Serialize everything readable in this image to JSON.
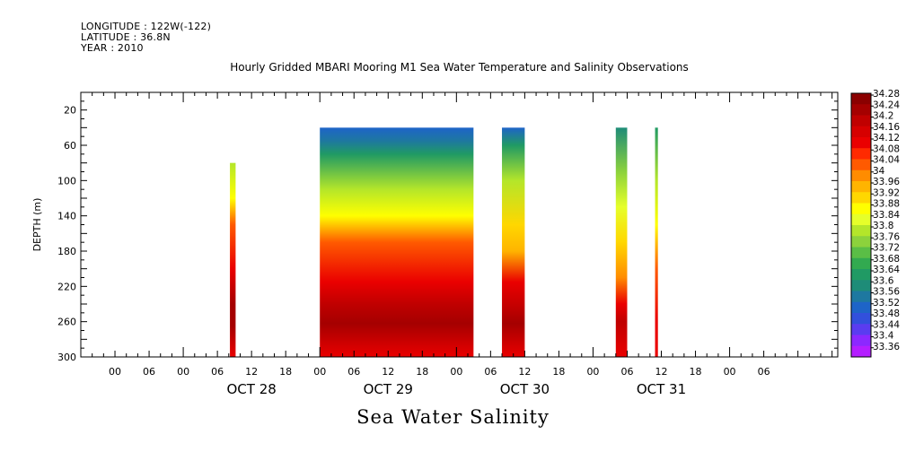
{
  "header": {
    "longitude": "LONGITUDE : 122W(-122)",
    "latitude": "LATITUDE : 36.8N",
    "year": "YEAR : 2010"
  },
  "chart_data": {
    "type": "heatmap",
    "title": "Hourly Gridded MBARI Mooring M1 Sea Water Temperature and Salinity Observations",
    "footer_title": "Sea Water Salinity",
    "ylabel": "DEPTH (m)",
    "xlabel": "",
    "x_unit": "hours since OCT 28 00:00 2010",
    "xlim": [
      -18,
      115
    ],
    "ylim": [
      300,
      0
    ],
    "y_ticks": [
      20,
      60,
      100,
      140,
      180,
      220,
      260,
      300
    ],
    "x_hour_ticks": [
      {
        "x": -12,
        "label": "00"
      },
      {
        "x": -6,
        "label": "06"
      },
      {
        "x": 0,
        "label": "00"
      },
      {
        "x": 6,
        "label": "06"
      },
      {
        "x": 12,
        "label": "12"
      },
      {
        "x": 18,
        "label": "18"
      },
      {
        "x": 24,
        "label": "00"
      },
      {
        "x": 30,
        "label": "06"
      },
      {
        "x": 36,
        "label": "12"
      },
      {
        "x": 42,
        "label": "18"
      },
      {
        "x": 48,
        "label": "00"
      },
      {
        "x": 54,
        "label": "06"
      },
      {
        "x": 60,
        "label": "12"
      },
      {
        "x": 66,
        "label": "18"
      },
      {
        "x": 72,
        "label": "00"
      },
      {
        "x": 78,
        "label": "06"
      },
      {
        "x": 84,
        "label": "12"
      },
      {
        "x": 90,
        "label": "18"
      },
      {
        "x": 96,
        "label": "00"
      },
      {
        "x": 102,
        "label": "06"
      }
    ],
    "x_day_labels": [
      {
        "x": 12,
        "label": "OCT 28"
      },
      {
        "x": 36,
        "label": "OCT 29"
      },
      {
        "x": 60,
        "label": "OCT 30"
      },
      {
        "x": 84,
        "label": "OCT 31"
      }
    ],
    "colorbar": {
      "labels": [
        "34.28",
        "34.24",
        "34.2",
        "34.16",
        "34.12",
        "34.08",
        "34.04",
        "34",
        "33.96",
        "33.92",
        "33.88",
        "33.84",
        "33.8",
        "33.76",
        "33.72",
        "33.68",
        "33.64",
        "33.6",
        "33.56",
        "33.52",
        "33.48",
        "33.44",
        "33.4",
        "33.36"
      ],
      "colors": [
        "#8b0000",
        "#a50000",
        "#c00000",
        "#d60000",
        "#ea0000",
        "#ff2a00",
        "#ff5a00",
        "#ff8c00",
        "#ffb400",
        "#ffd700",
        "#ffff00",
        "#e6ff2a",
        "#b4e62a",
        "#8cd23c",
        "#5abe46",
        "#32aa50",
        "#209a64",
        "#1e8c78",
        "#1e78a0",
        "#1e64c8",
        "#3250dc",
        "#5a3cf0",
        "#8c28ff",
        "#b41eff"
      ],
      "min": 33.36,
      "max": 34.28
    },
    "segments": [
      {
        "x0": 8.2,
        "x1": 9.2,
        "top": 80,
        "profile": [
          [
            80,
            33.78
          ],
          [
            120,
            33.9
          ],
          [
            150,
            34.02
          ],
          [
            200,
            34.12
          ],
          [
            240,
            34.24
          ],
          [
            265,
            34.24
          ],
          [
            300,
            34.14
          ]
        ]
      },
      {
        "x0": 24.0,
        "x1": 51.0,
        "top": 40,
        "profile": [
          [
            40,
            33.54
          ],
          [
            55,
            33.56
          ],
          [
            70,
            33.66
          ],
          [
            110,
            33.78
          ],
          [
            140,
            33.88
          ],
          [
            170,
            34.02
          ],
          [
            215,
            34.14
          ],
          [
            240,
            34.22
          ],
          [
            262,
            34.24
          ],
          [
            300,
            34.14
          ]
        ]
      },
      {
        "x0": 56.0,
        "x1": 60.0,
        "top": 40,
        "profile": [
          [
            40,
            33.54
          ],
          [
            60,
            33.66
          ],
          [
            100,
            33.82
          ],
          [
            150,
            33.92
          ],
          [
            180,
            33.96
          ],
          [
            215,
            34.1
          ],
          [
            245,
            34.22
          ],
          [
            262,
            34.24
          ],
          [
            300,
            34.14
          ]
        ]
      },
      {
        "x0": 76.0,
        "x1": 78.0,
        "top": 40,
        "profile": [
          [
            40,
            33.62
          ],
          [
            90,
            33.76
          ],
          [
            130,
            33.86
          ],
          [
            170,
            33.92
          ],
          [
            210,
            34.0
          ],
          [
            240,
            34.14
          ],
          [
            260,
            34.2
          ],
          [
            300,
            34.12
          ]
        ]
      },
      {
        "x0": 82.9,
        "x1": 83.4,
        "top": 40,
        "profile": [
          [
            40,
            33.64
          ],
          [
            100,
            33.78
          ],
          [
            150,
            33.9
          ],
          [
            200,
            34.02
          ],
          [
            260,
            34.12
          ],
          [
            300,
            34.1
          ]
        ]
      }
    ]
  }
}
